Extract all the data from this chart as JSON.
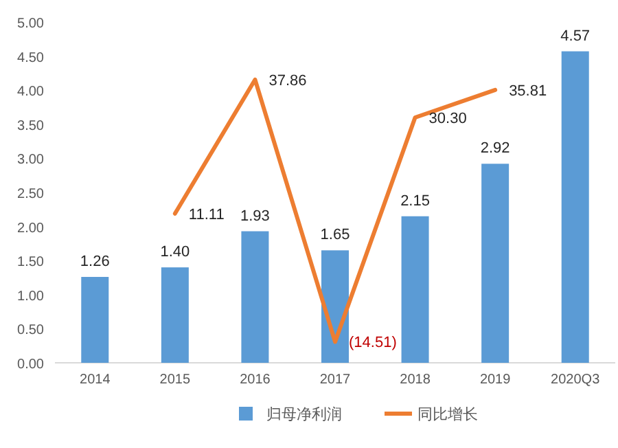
{
  "chart_data": {
    "type": "bar",
    "categories": [
      "2014",
      "2015",
      "2016",
      "2017",
      "2018",
      "2019",
      "2020Q3"
    ],
    "series": [
      {
        "name": "归母净利润",
        "color": "#5b9bd5",
        "values": [
          1.26,
          1.4,
          1.93,
          1.65,
          2.15,
          2.92,
          4.57
        ],
        "value_labels": [
          "1.26",
          "1.40",
          "1.93",
          "1.65",
          "2.15",
          "2.92",
          "4.57"
        ]
      },
      {
        "name": "同比增长",
        "type": "line",
        "axis": "y2",
        "color": "#ed7d31",
        "values": [
          null,
          11.11,
          37.86,
          -14.51,
          30.3,
          35.81,
          null
        ],
        "value_labels": [
          null,
          "11.11",
          "37.86",
          "(14.51)",
          "30.30",
          "35.81",
          null
        ]
      }
    ],
    "ylim": [
      0,
      5
    ],
    "yticks": [
      {
        "value": 0,
        "label": "0.00"
      },
      {
        "value": 0.5,
        "label": "0.50"
      },
      {
        "value": 1,
        "label": "1.00"
      },
      {
        "value": 1.5,
        "label": "1.50"
      },
      {
        "value": 2,
        "label": "2.00"
      },
      {
        "value": 2.5,
        "label": "2.50"
      },
      {
        "value": 3,
        "label": "3.00"
      },
      {
        "value": 3.5,
        "label": "3.50"
      },
      {
        "value": 4,
        "label": "4.00"
      },
      {
        "value": 4.5,
        "label": "4.50"
      },
      {
        "value": 5,
        "label": "5.00"
      }
    ],
    "legend": "bottom",
    "grid": false
  }
}
